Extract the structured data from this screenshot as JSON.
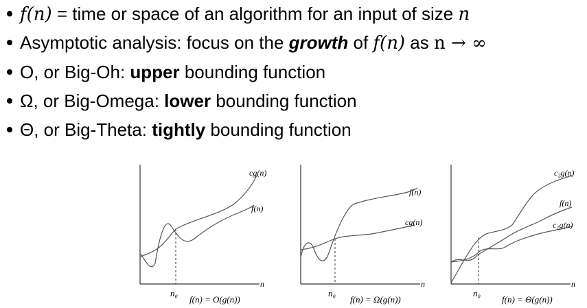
{
  "bullets": [
    {
      "fx_label": "f(n)",
      "text_a": " = time or space of an algorithm for an input of size ",
      "n_label": "n"
    },
    {
      "text_a": "Asymptotic analysis: focus on the ",
      "emph": "growth",
      "text_b": " of ",
      "fx_label": "f(n)",
      "text_c": " as ",
      "limit": "n → ∞"
    },
    {
      "symbol": "O",
      "text_a": ", or Big-Oh: ",
      "emph": "upper",
      "text_b": " bounding function"
    },
    {
      "symbol": "Ω",
      "text_a": ", or Big-Omega: ",
      "emph": "lower",
      "text_b": " bounding function"
    },
    {
      "symbol": "Θ",
      "text_a": ", or Big-Theta: ",
      "emph": "tightly",
      "text_b": " bounding function"
    }
  ],
  "charts": [
    {
      "curve_upper_label": "cg(n)",
      "curve_lower_label": "f(n)",
      "axis_label": "n",
      "threshold_label": "n₀",
      "caption": "f(n) = O(g(n))"
    },
    {
      "curve_upper_label": "f(n)",
      "curve_lower_label": "cg(n)",
      "axis_label": "n",
      "threshold_label": "n₀",
      "caption": "f(n) = Ω(g(n))"
    },
    {
      "curve_upper_label": "c₂g(n)",
      "curve_middle_label": "f(n)",
      "curve_lower_label": "c₁g(n)",
      "axis_label": "n",
      "threshold_label": "n₀",
      "caption": "f(n) = Θ(g(n))"
    }
  ],
  "colors": {
    "text": "#000000",
    "curve": "#555555",
    "axis": "#333333"
  }
}
